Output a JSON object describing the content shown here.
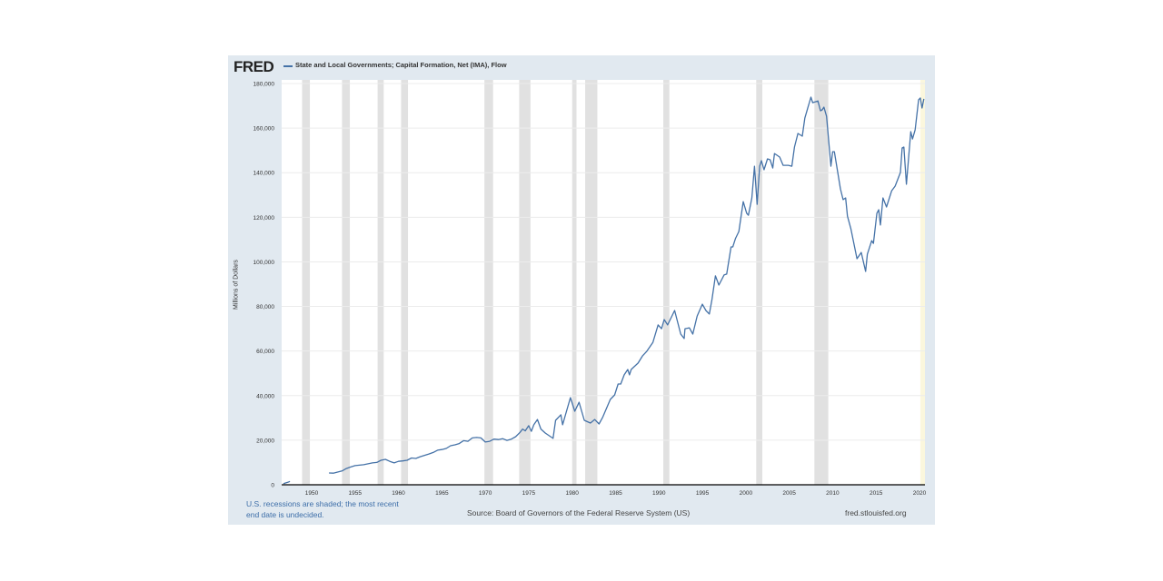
{
  "header": {
    "logo": "FRED",
    "legend": "State and Local Governments; Capital Formation, Net (IMA), Flow"
  },
  "footer": {
    "note": "U.S. recessions are shaded; the most recent end date is undecided.",
    "source": "Source: Board of Governors of the Federal Reserve System (US)",
    "url": "fred.stlouisfed.org"
  },
  "colors": {
    "line": "#4572a7",
    "recession": "#e1e1e1",
    "undecided": "#fbf7dd",
    "panel": "#e1e9f0"
  },
  "chart_data": {
    "type": "line",
    "title": "State and Local Governments; Capital Formation, Net (IMA), Flow",
    "xlabel": "",
    "ylabel": "Millions of Dollars",
    "xlim": [
      1946.55,
      2020.63
    ],
    "ylim": [
      0,
      180000
    ],
    "yticks": [
      0,
      20000,
      40000,
      60000,
      80000,
      100000,
      120000,
      140000,
      160000,
      180000
    ],
    "ytick_labels": [
      "0",
      "20,000",
      "40,000",
      "60,000",
      "80,000",
      "100,000",
      "120,000",
      "140,000",
      "160,000",
      "180,000"
    ],
    "xticks": [
      1950,
      1955,
      1960,
      1965,
      1970,
      1975,
      1980,
      1985,
      1990,
      1995,
      2000,
      2005,
      2010,
      2015,
      2020
    ],
    "xtick_labels": [
      "1950",
      "1955",
      "1960",
      "1965",
      "1970",
      "1975",
      "1980",
      "1985",
      "1990",
      "1995",
      "2000",
      "2005",
      "2010",
      "2015",
      "2020"
    ],
    "grid": true,
    "recessions": [
      [
        1948.9,
        1949.8
      ],
      [
        1953.5,
        1954.4
      ],
      [
        1957.6,
        1958.3
      ],
      [
        1960.3,
        1961.1
      ],
      [
        1969.9,
        1970.9
      ],
      [
        1973.9,
        1975.2
      ],
      [
        1980.0,
        1980.5
      ],
      [
        1981.5,
        1982.9
      ],
      [
        1990.5,
        1991.2
      ],
      [
        2001.2,
        2001.9
      ],
      [
        2007.9,
        2009.5
      ]
    ],
    "undecided_recession": [
      2020.1,
      2020.63
    ],
    "segments": [
      [
        [
          1946.75,
          500
        ],
        [
          1947.0,
          800
        ],
        [
          1947.25,
          1100
        ],
        [
          1947.5,
          1500
        ]
      ],
      [
        [
          1952.0,
          5300
        ],
        [
          1952.5,
          5200
        ],
        [
          1953.0,
          5700
        ],
        [
          1953.5,
          6200
        ],
        [
          1954.0,
          7300
        ],
        [
          1954.5,
          8000
        ],
        [
          1955.0,
          8600
        ],
        [
          1956.0,
          9000
        ],
        [
          1957.0,
          9800
        ],
        [
          1957.5,
          10000
        ],
        [
          1958.0,
          11000
        ],
        [
          1958.5,
          11400
        ],
        [
          1959.0,
          10500
        ],
        [
          1959.5,
          9800
        ],
        [
          1960.0,
          10500
        ],
        [
          1960.5,
          10700
        ],
        [
          1961.0,
          11000
        ],
        [
          1961.5,
          12000
        ],
        [
          1962.0,
          11800
        ],
        [
          1962.5,
          12600
        ],
        [
          1963.0,
          13200
        ],
        [
          1963.5,
          13800
        ],
        [
          1964.0,
          14500
        ],
        [
          1964.5,
          15500
        ],
        [
          1965.0,
          15800
        ],
        [
          1965.5,
          16300
        ],
        [
          1966.0,
          17500
        ],
        [
          1966.5,
          17900
        ],
        [
          1967.0,
          18500
        ],
        [
          1967.5,
          19800
        ],
        [
          1968.0,
          19500
        ],
        [
          1968.5,
          21000
        ],
        [
          1969.0,
          21200
        ],
        [
          1969.5,
          21000
        ],
        [
          1970.0,
          19200
        ],
        [
          1970.5,
          19500
        ],
        [
          1971.0,
          20500
        ],
        [
          1971.5,
          20300
        ],
        [
          1972.0,
          20700
        ],
        [
          1972.5,
          19900
        ],
        [
          1973.0,
          20500
        ],
        [
          1973.5,
          21600
        ],
        [
          1974.0,
          23500
        ],
        [
          1974.3,
          25000
        ],
        [
          1974.6,
          24200
        ],
        [
          1975.0,
          26500
        ],
        [
          1975.3,
          24000
        ],
        [
          1975.6,
          27000
        ],
        [
          1976.0,
          29300
        ],
        [
          1976.4,
          25000
        ],
        [
          1976.9,
          23200
        ],
        [
          1977.8,
          20800
        ],
        [
          1978.1,
          28900
        ],
        [
          1978.7,
          31400
        ],
        [
          1978.9,
          26900
        ],
        [
          1979.8,
          39100
        ],
        [
          1980.3,
          33000
        ],
        [
          1980.8,
          37000
        ],
        [
          1981.4,
          28900
        ],
        [
          1982.1,
          27700
        ],
        [
          1982.6,
          29300
        ],
        [
          1983.1,
          27300
        ],
        [
          1983.5,
          30100
        ],
        [
          1984.4,
          38300
        ],
        [
          1984.9,
          40300
        ],
        [
          1985.3,
          45200
        ],
        [
          1985.6,
          45200
        ],
        [
          1986.0,
          49300
        ],
        [
          1986.4,
          51700
        ],
        [
          1986.6,
          49300
        ],
        [
          1986.8,
          51700
        ],
        [
          1987.6,
          54600
        ],
        [
          1988.1,
          57800
        ],
        [
          1988.6,
          59900
        ],
        [
          1989.3,
          63900
        ],
        [
          1989.9,
          71700
        ],
        [
          1990.3,
          70000
        ],
        [
          1990.6,
          74100
        ],
        [
          1991.0,
          71700
        ],
        [
          1991.8,
          78200
        ],
        [
          1992.5,
          67600
        ],
        [
          1992.9,
          65600
        ],
        [
          1993.0,
          70000
        ],
        [
          1993.5,
          70400
        ],
        [
          1993.9,
          67600
        ],
        [
          1994.4,
          75700
        ],
        [
          1995.0,
          81000
        ],
        [
          1995.4,
          78200
        ],
        [
          1995.8,
          76600
        ],
        [
          1996.1,
          83100
        ],
        [
          1996.5,
          93700
        ],
        [
          1996.9,
          89600
        ],
        [
          1997.5,
          94100
        ],
        [
          1997.8,
          94500
        ],
        [
          1998.3,
          106700
        ],
        [
          1998.5,
          106700
        ],
        [
          1998.8,
          110400
        ],
        [
          1999.2,
          113600
        ],
        [
          1999.7,
          127000
        ],
        [
          2000.1,
          121800
        ],
        [
          2000.3,
          120900
        ],
        [
          2000.7,
          128700
        ],
        [
          2001.0,
          142900
        ],
        [
          2001.3,
          125800
        ],
        [
          2001.6,
          142900
        ],
        [
          2001.8,
          145400
        ],
        [
          2002.1,
          141300
        ],
        [
          2002.5,
          146200
        ],
        [
          2002.8,
          145800
        ],
        [
          2003.1,
          142100
        ],
        [
          2003.3,
          148600
        ],
        [
          2003.9,
          147000
        ],
        [
          2004.3,
          143300
        ],
        [
          2004.9,
          143300
        ],
        [
          2005.3,
          142900
        ],
        [
          2005.6,
          151500
        ],
        [
          2006.0,
          157600
        ],
        [
          2006.5,
          156400
        ],
        [
          2006.8,
          164500
        ],
        [
          2007.5,
          173900
        ],
        [
          2007.7,
          171400
        ],
        [
          2008.3,
          172200
        ],
        [
          2008.6,
          167800
        ],
        [
          2008.8,
          168200
        ],
        [
          2009.0,
          169400
        ],
        [
          2009.3,
          165300
        ],
        [
          2009.8,
          142900
        ],
        [
          2010.0,
          149400
        ],
        [
          2010.2,
          149400
        ],
        [
          2010.9,
          132700
        ],
        [
          2011.2,
          127900
        ],
        [
          2011.5,
          128700
        ],
        [
          2011.7,
          120500
        ],
        [
          2012.1,
          114800
        ],
        [
          2012.8,
          101400
        ],
        [
          2013.3,
          104200
        ],
        [
          2013.8,
          95700
        ],
        [
          2014.0,
          103400
        ],
        [
          2014.5,
          109500
        ],
        [
          2014.7,
          108300
        ],
        [
          2015.1,
          121800
        ],
        [
          2015.3,
          123400
        ],
        [
          2015.5,
          116500
        ],
        [
          2015.8,
          128700
        ],
        [
          2016.2,
          124600
        ],
        [
          2016.8,
          131900
        ],
        [
          2017.2,
          134000
        ],
        [
          2017.8,
          140100
        ],
        [
          2018.0,
          151100
        ],
        [
          2018.2,
          151500
        ],
        [
          2018.5,
          134800
        ],
        [
          2019.0,
          158400
        ],
        [
          2019.2,
          155100
        ],
        [
          2019.5,
          159200
        ],
        [
          2019.9,
          172700
        ],
        [
          2020.1,
          173500
        ],
        [
          2020.3,
          169000
        ],
        [
          2020.5,
          173100
        ]
      ]
    ]
  }
}
